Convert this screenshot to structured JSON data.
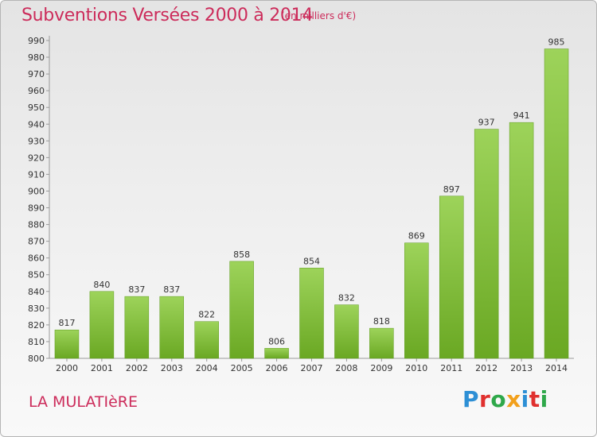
{
  "title": "Subventions Versées 2000 à 2014",
  "subtitle": "(en milliers d'€)",
  "commune": "LA MULATIèRE",
  "logo": {
    "text": "Proxiti",
    "colors": [
      "#2d8fd5",
      "#e0302e",
      "#2fa84a",
      "#f2a01b",
      "#2d8fd5",
      "#e0302e",
      "#2fa84a"
    ]
  },
  "chart_data": {
    "type": "bar",
    "title": "Subventions Versées 2000 à 2014",
    "subtitle": "(en milliers d'€)",
    "xlabel": "",
    "ylabel": "",
    "categories": [
      "2000",
      "2001",
      "2002",
      "2003",
      "2004",
      "2005",
      "2006",
      "2007",
      "2008",
      "2009",
      "2010",
      "2011",
      "2012",
      "2013",
      "2014"
    ],
    "values": [
      817,
      840,
      837,
      837,
      822,
      858,
      806,
      854,
      832,
      818,
      869,
      897,
      937,
      941,
      985
    ],
    "ylim": [
      800,
      990
    ],
    "ytick_step": 10,
    "grid": false,
    "bar_color": "#7dc242"
  }
}
